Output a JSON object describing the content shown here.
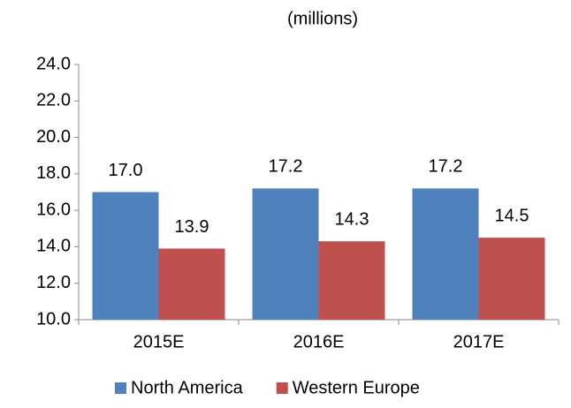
{
  "chart_data": {
    "type": "bar",
    "subtitle": "(millions)",
    "categories": [
      "2015E",
      "2016E",
      "2017E"
    ],
    "series": [
      {
        "name": "North America",
        "color": "#4f81bd",
        "values": [
          17.0,
          17.2,
          17.2
        ],
        "value_labels": [
          "17.0",
          "17.2",
          "17.2"
        ]
      },
      {
        "name": "Western Europe",
        "color": "#c0504d",
        "values": [
          13.9,
          14.3,
          14.5
        ],
        "value_labels": [
          "13.9",
          "14.3",
          "14.5"
        ]
      }
    ],
    "ylim": [
      10,
      24
    ],
    "yticks": [
      {
        "value": 10,
        "label": "10.0"
      },
      {
        "value": 12,
        "label": "12.0"
      },
      {
        "value": 14,
        "label": "14.0"
      },
      {
        "value": 16,
        "label": "16.0"
      },
      {
        "value": 18,
        "label": "18.0"
      },
      {
        "value": 20,
        "label": "20.0"
      },
      {
        "value": 22,
        "label": "22.0"
      },
      {
        "value": 24,
        "label": "24.0"
      }
    ],
    "grid": false,
    "legend": "bottom"
  }
}
